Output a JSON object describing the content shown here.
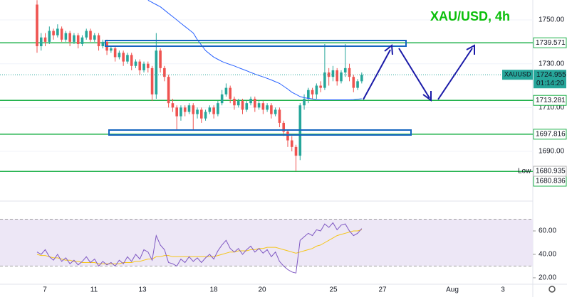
{
  "chart_data": {
    "type": "candlestick",
    "title": "XAU/USD, 4h",
    "symbol": "XAUUSD",
    "countdown": "01:14:20",
    "low_text": "Low",
    "up_color": "#26a69a",
    "down_color": "#ef5350",
    "ma_color": "#2962ff",
    "level_color": "#22b24c",
    "open": [
      1757,
      1738,
      1742,
      1740,
      1745,
      1743,
      1746,
      1741,
      1744,
      1740,
      1743,
      1739,
      1742,
      1745,
      1741,
      1743,
      1738,
      1740,
      1736,
      1737,
      1733,
      1735,
      1731,
      1734,
      1729,
      1731,
      1727,
      1730,
      1728,
      1716,
      1736,
      1728,
      1724,
      1712,
      1710,
      1706,
      1710,
      1708,
      1711,
      1707,
      1709,
      1705,
      1708,
      1710,
      1707,
      1712,
      1716,
      1719,
      1714,
      1711,
      1713,
      1709,
      1712,
      1714,
      1710,
      1712,
      1709,
      1711,
      1707,
      1709,
      1703,
      1699,
      1695,
      1692,
      1688,
      1711,
      1714,
      1718,
      1716,
      1720,
      1719,
      1726,
      1724,
      1727,
      1722,
      1726,
      1728,
      1724,
      1719,
      1722
    ],
    "high": [
      1759,
      1744,
      1744,
      1747,
      1746,
      1748,
      1747,
      1745,
      1745,
      1744,
      1744,
      1743,
      1746,
      1746,
      1744,
      1744,
      1741,
      1741,
      1738,
      1738,
      1736,
      1736,
      1735,
      1735,
      1732,
      1732,
      1731,
      1731,
      1729,
      1744,
      1737,
      1729,
      1725,
      1714,
      1711,
      1711,
      1711,
      1712,
      1712,
      1710,
      1710,
      1709,
      1711,
      1711,
      1713,
      1718,
      1721,
      1720,
      1715,
      1714,
      1714,
      1713,
      1715,
      1715,
      1713,
      1713,
      1712,
      1712,
      1710,
      1710,
      1704,
      1700,
      1697,
      1693,
      1712,
      1716,
      1719,
      1719,
      1721,
      1722,
      1739,
      1728,
      1729,
      1728,
      1727,
      1739,
      1730,
      1725,
      1723,
      1726
    ],
    "low": [
      1735,
      1736,
      1738,
      1739,
      1741,
      1742,
      1740,
      1740,
      1738,
      1739,
      1737,
      1738,
      1741,
      1740,
      1740,
      1736,
      1737,
      1734,
      1735,
      1731,
      1732,
      1729,
      1730,
      1727,
      1728,
      1725,
      1726,
      1726,
      1713,
      1714,
      1726,
      1722,
      1710,
      1708,
      1700,
      1704,
      1706,
      1707,
      1700,
      1705,
      1703,
      1704,
      1707,
      1705,
      1706,
      1711,
      1715,
      1712,
      1709,
      1710,
      1707,
      1708,
      1711,
      1708,
      1709,
      1707,
      1708,
      1705,
      1706,
      1701,
      1697,
      1692,
      1690,
      1680.935,
      1686,
      1709,
      1712,
      1714,
      1714,
      1717,
      1718,
      1720,
      1722,
      1720,
      1721,
      1724,
      1722,
      1717,
      1718,
      1721
    ],
    "close": [
      1738,
      1742,
      1740,
      1745,
      1743,
      1746,
      1741,
      1744,
      1740,
      1743,
      1739,
      1742,
      1745,
      1741,
      1743,
      1738,
      1740,
      1736,
      1737,
      1733,
      1735,
      1731,
      1734,
      1729,
      1731,
      1727,
      1730,
      1728,
      1716,
      1736,
      1728,
      1724,
      1712,
      1710,
      1706,
      1710,
      1708,
      1711,
      1707,
      1709,
      1705,
      1708,
      1710,
      1707,
      1712,
      1716,
      1719,
      1714,
      1711,
      1713,
      1709,
      1712,
      1714,
      1710,
      1712,
      1709,
      1711,
      1707,
      1709,
      1703,
      1699,
      1695,
      1692,
      1688,
      1711,
      1714,
      1718,
      1716,
      1720,
      1719,
      1726,
      1724,
      1727,
      1722,
      1726,
      1728,
      1724,
      1719,
      1722,
      1724.955
    ],
    "ma": [
      null,
      null,
      null,
      null,
      null,
      null,
      null,
      null,
      null,
      null,
      null,
      null,
      null,
      null,
      null,
      null,
      null,
      null,
      null,
      null,
      null,
      null,
      null,
      null,
      null,
      null,
      null,
      1759,
      1758,
      1757,
      1756,
      1754.5,
      1753,
      1751.5,
      1750,
      1748.5,
      1747,
      1745.5,
      1744,
      1741,
      1738.5,
      1736,
      1734.5,
      1733,
      1732,
      1731,
      1730.3,
      1729.6,
      1729,
      1728.2,
      1727.5,
      1726.8,
      1726,
      1725.3,
      1724.6,
      1724,
      1723.3,
      1722.6,
      1721.8,
      1721,
      1719.7,
      1718.4,
      1717,
      1716,
      1715,
      1714.5,
      1714.2,
      1713.9,
      1713.6,
      1713.5,
      1713.5,
      1713.5,
      1713.5,
      1713.5,
      1713.5,
      1713.5,
      1713.5,
      1713.6,
      1713.8,
      1714
    ],
    "ylim": [
      1671.5,
      1759.1
    ],
    "yticks": [
      {
        "value": 1690,
        "label": "1690.00"
      },
      {
        "value": 1710,
        "label": "1710.00"
      },
      {
        "value": 1730,
        "label": "1730.00"
      },
      {
        "value": 1750,
        "label": "1750.00"
      }
    ],
    "levels": [
      1739.571,
      1713.281,
      1697.816,
      1680.836
    ],
    "x_labels": [
      "7",
      "11",
      "13",
      "18",
      "20",
      "25",
      "27",
      "Aug",
      "3"
    ],
    "rsi": {
      "color": "#7e57c2",
      "signal_color": "#f5c518",
      "band_color": "#ede7f6",
      "values": [
        42,
        40,
        44,
        38,
        35,
        40,
        34,
        37,
        32,
        35,
        31,
        34,
        38,
        33,
        36,
        30,
        34,
        31,
        33,
        30,
        35,
        32,
        38,
        34,
        40,
        36,
        44,
        42,
        35,
        56,
        48,
        44,
        33,
        32,
        30,
        36,
        33,
        38,
        34,
        37,
        33,
        37,
        40,
        36,
        43,
        48,
        52,
        45,
        42,
        45,
        40,
        44,
        47,
        42,
        45,
        41,
        44,
        38,
        42,
        34,
        30,
        27,
        25,
        24,
        52,
        55,
        58,
        56,
        61,
        60,
        66,
        63,
        67,
        61,
        65,
        66,
        60,
        56,
        58,
        62
      ],
      "signal": [
        40,
        39,
        39,
        38,
        37,
        37,
        36,
        35,
        35,
        34,
        34,
        33,
        33,
        33,
        33,
        32,
        32,
        32,
        32,
        32,
        32,
        33,
        33,
        33,
        34,
        34,
        35,
        36,
        36,
        38,
        38,
        39,
        39,
        38,
        38,
        38,
        38,
        38,
        38,
        38,
        38,
        38,
        38,
        38,
        39,
        40,
        41,
        42,
        42,
        43,
        43,
        43,
        44,
        44,
        45,
        45,
        46,
        46,
        46,
        45,
        44,
        43,
        42,
        41,
        42,
        43,
        44,
        45,
        47,
        48,
        50,
        52,
        54,
        56,
        57,
        58,
        59,
        60,
        60,
        61
      ],
      "ylim": [
        14.5,
        78.2
      ],
      "yticks": [
        {
          "value": 20,
          "label": "20.00"
        },
        {
          "value": 40,
          "label": "40.00"
        },
        {
          "value": 60,
          "label": "60.00"
        }
      ],
      "band": [
        30,
        70
      ]
    }
  }
}
